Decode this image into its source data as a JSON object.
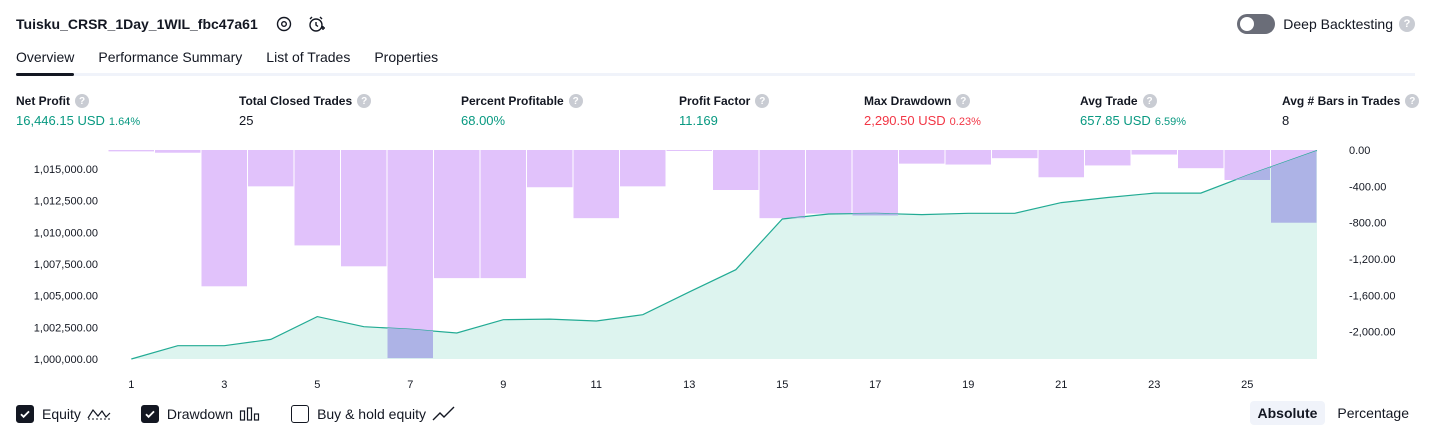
{
  "header": {
    "strategy_name": "Tuisku_CRSR_1Day_1WIL_fbc47a61",
    "settings_icon": "gear-icon",
    "alert_icon": "alarm-clock-plus-icon",
    "deep_backtesting_label": "Deep Backtesting",
    "deep_backtesting_on": false,
    "help_glyph": "?"
  },
  "tabs": [
    {
      "label": "Overview",
      "active": true
    },
    {
      "label": "Performance Summary",
      "active": false
    },
    {
      "label": "List of Trades",
      "active": false
    },
    {
      "label": "Properties",
      "active": false
    }
  ],
  "metrics": {
    "net_profit": {
      "label": "Net Profit",
      "value": "16,446.15 USD",
      "sub": "1.64%"
    },
    "total_closed_trades": {
      "label": "Total Closed Trades",
      "value": "25"
    },
    "percent_profitable": {
      "label": "Percent Profitable",
      "value": "68.00%"
    },
    "profit_factor": {
      "label": "Profit Factor",
      "value": "11.169"
    },
    "max_drawdown": {
      "label": "Max Drawdown",
      "value": "2,290.50 USD",
      "sub": "0.23%"
    },
    "avg_trade": {
      "label": "Avg Trade",
      "value": "657.85 USD",
      "sub": "6.59%"
    },
    "avg_bars": {
      "label": "Avg # Bars in Trades",
      "value": "8"
    }
  },
  "chart_data": {
    "type": "area",
    "x": [
      1,
      2,
      3,
      4,
      5,
      6,
      7,
      8,
      9,
      10,
      11,
      12,
      13,
      14,
      15,
      16,
      17,
      18,
      19,
      20,
      21,
      22,
      23,
      24,
      25,
      26
    ],
    "x_tick_labels": [
      "1",
      "3",
      "5",
      "7",
      "9",
      "11",
      "13",
      "15",
      "17",
      "19",
      "21",
      "23",
      "25"
    ],
    "left_axis": {
      "ylim": [
        1000000,
        1016500
      ],
      "tick_labels": [
        "1,000,000.00",
        "1,002,500.00",
        "1,005,000.00",
        "1,007,500.00",
        "1,010,000.00",
        "1,012,500.00",
        "1,015,000.00"
      ],
      "tick_values": [
        1000000,
        1002500,
        1005000,
        1007500,
        1010000,
        1012500,
        1015000
      ]
    },
    "right_axis": {
      "ylim": [
        -2300,
        0
      ],
      "tick_labels": [
        "0.00",
        "-400.00",
        "-800.00",
        "-1,200.00",
        "-1,600.00",
        "-2,000.00"
      ],
      "tick_values": [
        0,
        -400,
        -800,
        -1200,
        -1600,
        -2000
      ]
    },
    "series": [
      {
        "name": "Equity",
        "type": "area",
        "axis": "left",
        "values": [
          1000000,
          1001050,
          1001050,
          1001550,
          1003350,
          1002550,
          1002350,
          1002050,
          1003100,
          1003150,
          1003000,
          1003500,
          1005300,
          1007050,
          1011050,
          1011450,
          1011500,
          1011400,
          1011500,
          1011500,
          1012350,
          1012750,
          1013100,
          1013100,
          1014500,
          1016450
        ]
      },
      {
        "name": "Drawdown",
        "type": "bar",
        "axis": "right",
        "values": [
          -15,
          -30,
          -1500,
          -400,
          -1050,
          -1280,
          -2290,
          -1410,
          -1410,
          -410,
          -750,
          -400,
          0,
          -440,
          -750,
          -700,
          -720,
          -150,
          -160,
          -90,
          -300,
          -170,
          -50,
          -200,
          -330,
          -800
        ]
      }
    ],
    "colors": {
      "equity_line": "#22ab94",
      "equity_fill": "#d2f0ea",
      "drawdown": "#e1c2fb",
      "overlap": "#adb3e6"
    }
  },
  "legend": {
    "equity": {
      "label": "Equity",
      "checked": true
    },
    "drawdown": {
      "label": "Drawdown",
      "checked": true
    },
    "buy_hold": {
      "label": "Buy & hold equity",
      "checked": false
    }
  },
  "scale": {
    "absolute_label": "Absolute",
    "percentage_label": "Percentage",
    "selected": "Absolute"
  }
}
